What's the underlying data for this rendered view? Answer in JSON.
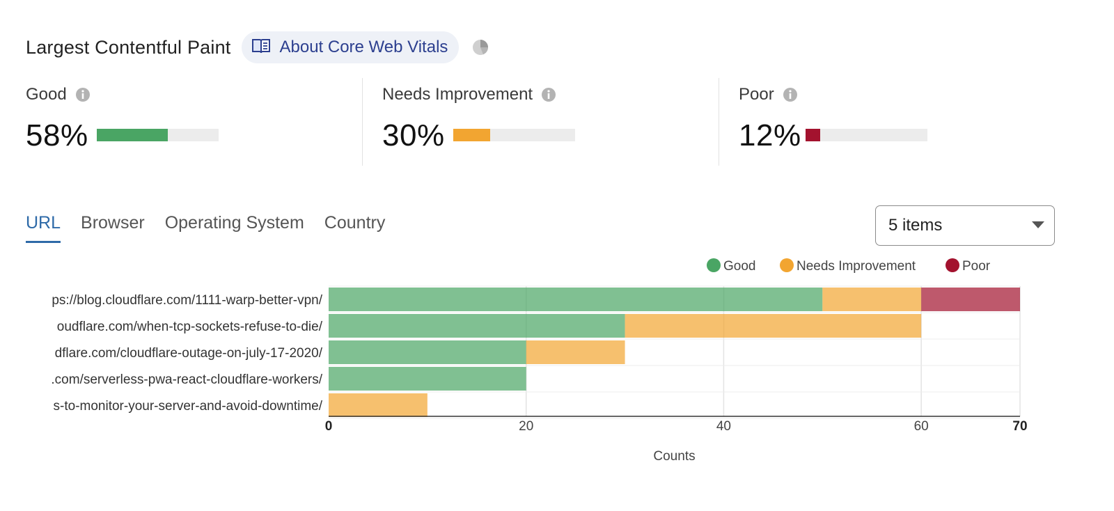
{
  "header": {
    "title": "Largest Contentful Paint",
    "about_link": "About Core Web Vitals"
  },
  "metrics": [
    {
      "label": "Good",
      "value": "58%",
      "fraction": 0.58,
      "color": "#4aa564"
    },
    {
      "label": "Needs Improvement",
      "value": "30%",
      "fraction": 0.3,
      "color": "#f2a531"
    },
    {
      "label": "Poor",
      "value": "12%",
      "fraction": 0.12,
      "color": "#a3122e"
    }
  ],
  "tabs": [
    {
      "label": "URL",
      "active": true
    },
    {
      "label": "Browser",
      "active": false
    },
    {
      "label": "Operating System",
      "active": false
    },
    {
      "label": "Country",
      "active": false
    }
  ],
  "select": {
    "value": "5 items"
  },
  "chart_data": {
    "type": "bar",
    "orientation": "horizontal",
    "stacked": true,
    "categories": [
      "ps://blog.cloudflare.com/1111-warp-better-vpn/",
      "oudflare.com/when-tcp-sockets-refuse-to-die/",
      "dflare.com/cloudflare-outage-on-july-17-2020/",
      ".com/serverless-pwa-react-cloudflare-workers/",
      "s-to-monitor-your-server-and-avoid-downtime/"
    ],
    "series": [
      {
        "name": "Good",
        "color": "#4aa564",
        "values": [
          50,
          30,
          20,
          20,
          0
        ]
      },
      {
        "name": "Needs Improvement",
        "color": "#f2a531",
        "values": [
          10,
          30,
          10,
          0,
          10
        ]
      },
      {
        "name": "Poor",
        "color": "#a3122e",
        "values": [
          10,
          0,
          0,
          0,
          0
        ]
      }
    ],
    "xlabel": "Counts",
    "ylabel": "",
    "xlim": [
      0,
      70
    ],
    "xticks": [
      "0",
      "20",
      "40",
      "60",
      "70"
    ],
    "grid": true,
    "legend_position": "top-right"
  }
}
